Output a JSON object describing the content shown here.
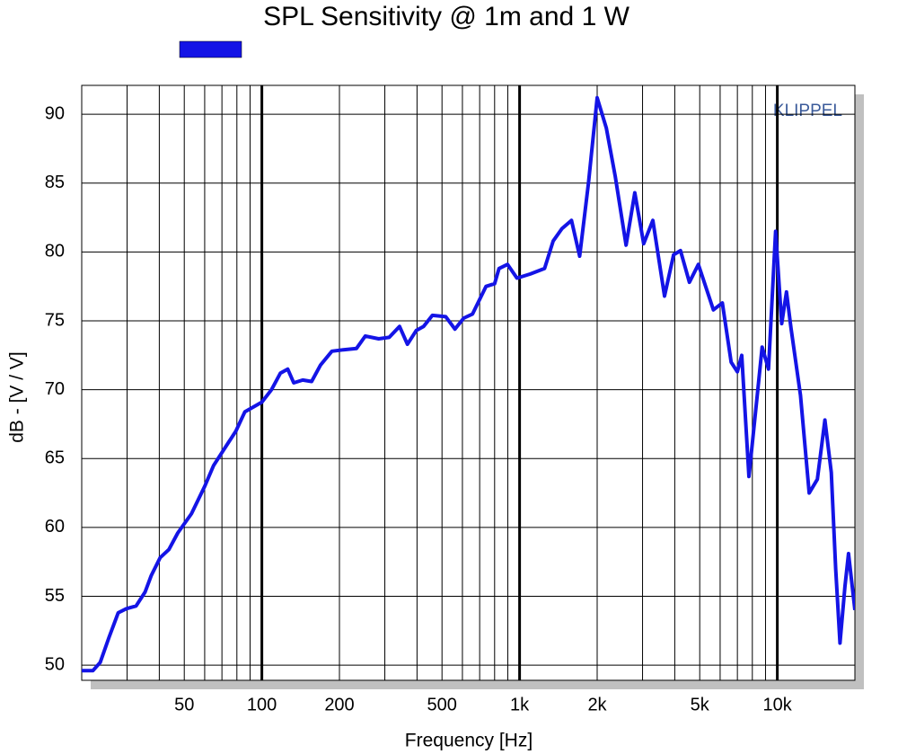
{
  "chart_data": {
    "type": "line",
    "title": "SPL Sensitivity @ 1m and 1 W",
    "xlabel": "Frequency [Hz]",
    "ylabel": "dB - [V / V]",
    "annotation": "KLIPPEL",
    "xscale": "log",
    "xlim": [
      20,
      20000
    ],
    "ylim": [
      48.9,
      92.1
    ],
    "xticks": [
      50,
      100,
      200,
      500,
      {
        "value": 1000,
        "label": "1k"
      },
      {
        "value": 2000,
        "label": "2k"
      },
      {
        "value": 5000,
        "label": "5k"
      },
      {
        "value": 10000,
        "label": "10k"
      }
    ],
    "yticks": [
      50,
      55,
      60,
      65,
      70,
      75,
      80,
      85,
      90
    ],
    "xgrid": [
      20,
      30,
      40,
      50,
      60,
      70,
      80,
      90,
      200,
      300,
      400,
      500,
      600,
      700,
      800,
      900,
      2000,
      3000,
      4000,
      5000,
      6000,
      7000,
      8000,
      9000,
      20000
    ],
    "xgrid_major": [
      100,
      1000,
      10000
    ],
    "grid": true,
    "series": [
      {
        "color": "#1414e6",
        "x": [
          20,
          22.1,
          23.6,
          25.5,
          27.7,
          29.8,
          32.5,
          35.2,
          37.2,
          40.3,
          43.6,
          47.2,
          53.3,
          60.1,
          65,
          73.2,
          79.3,
          85.9,
          100,
          109,
          118,
          126,
          133,
          144,
          156,
          169,
          187,
          207,
          233,
          252,
          284,
          312,
          342,
          367,
          397,
          424,
          459,
          517,
          561,
          607,
          657,
          741,
          800,
          832,
          898,
          977,
          1100,
          1250,
          1350,
          1460,
          1590,
          1710,
          1850,
          2000,
          2170,
          2350,
          2590,
          2800,
          3030,
          3290,
          3650,
          3960,
          4210,
          4560,
          4940,
          5650,
          6120,
          6620,
          7000,
          7280,
          7760,
          8400,
          8730,
          9240,
          9850,
          10400,
          10850,
          11300,
          12300,
          13300,
          14300,
          15300,
          16200,
          16850,
          17500,
          18300,
          18900,
          20000
        ],
        "values": [
          49.6,
          49.6,
          50.2,
          52,
          53.8,
          54.1,
          54.3,
          55.3,
          56.5,
          57.8,
          58.4,
          59.6,
          61,
          63,
          64.5,
          66,
          67,
          68.4,
          69.1,
          70,
          71.2,
          71.5,
          70.5,
          70.7,
          70.6,
          71.8,
          72.8,
          72.9,
          73,
          73.9,
          73.7,
          73.8,
          74.6,
          73.3,
          74.3,
          74.6,
          75.4,
          75.3,
          74.4,
          75.2,
          75.5,
          77.5,
          77.7,
          78.8,
          79.1,
          78.1,
          78.4,
          78.8,
          80.8,
          81.7,
          82.3,
          79.7,
          85,
          91.2,
          89,
          85.5,
          80.5,
          84.3,
          80.6,
          82.3,
          76.8,
          79.8,
          80.1,
          77.8,
          79.1,
          75.8,
          76.3,
          72,
          71.3,
          72.5,
          63.7,
          70,
          73.1,
          71.5,
          81.5,
          74.8,
          77.1,
          74.5,
          69.6,
          62.5,
          63.5,
          67.8,
          64,
          57,
          51.6,
          55.7,
          58.1,
          54
        ]
      }
    ]
  }
}
